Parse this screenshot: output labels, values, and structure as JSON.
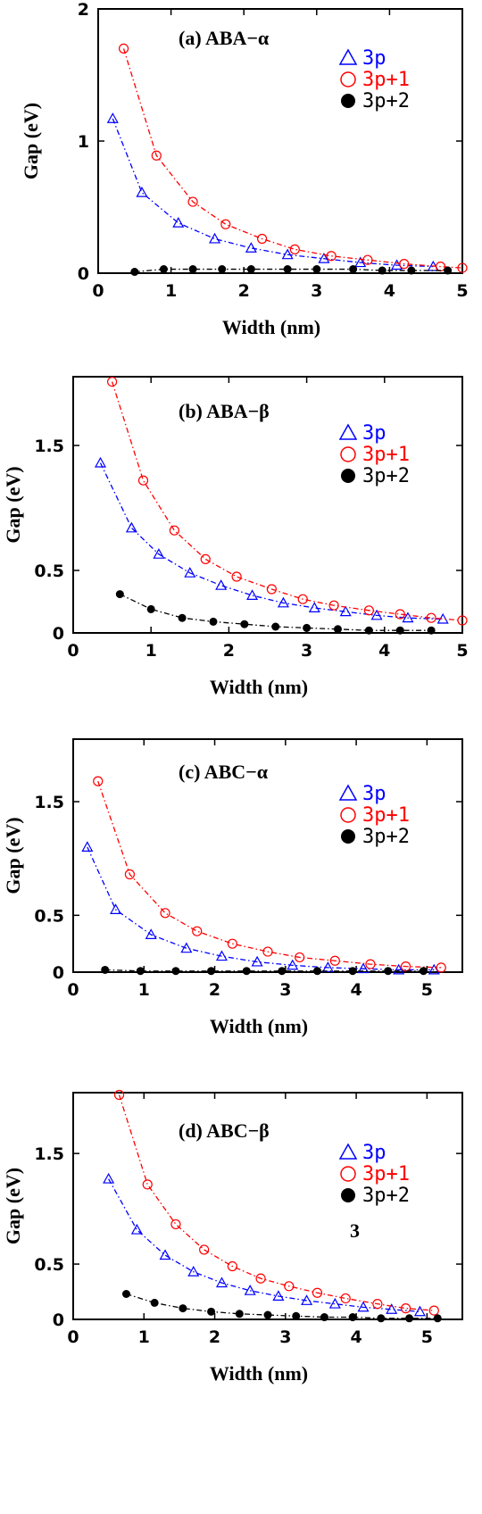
{
  "chart_data": [
    {
      "type": "line",
      "title": "(a) ABA−α",
      "xlabel": "Width (nm)",
      "ylabel": "Gap (eV)",
      "xlim": [
        0,
        5
      ],
      "ylim": [
        0,
        2
      ],
      "xticks": [
        "0",
        "1",
        "2",
        "3",
        "4",
        "5"
      ],
      "xtick_values": [
        0,
        1,
        2,
        3,
        4,
        5
      ],
      "yticks": [
        "0",
        "1",
        "2"
      ],
      "ytick_values": [
        0,
        1,
        2
      ],
      "legend_position": "top-right",
      "series": [
        {
          "name": "3p",
          "color": "#0000ff",
          "marker": "triangle",
          "x": [
            0.2,
            0.6,
            1.1,
            1.6,
            2.1,
            2.6,
            3.1,
            3.6,
            4.1,
            4.6
          ],
          "y": [
            1.17,
            0.61,
            0.38,
            0.26,
            0.19,
            0.14,
            0.11,
            0.08,
            0.06,
            0.05
          ]
        },
        {
          "name": "3p+1",
          "color": "#ff0000",
          "marker": "circle-open",
          "x": [
            0.35,
            0.8,
            1.3,
            1.75,
            2.25,
            2.7,
            3.2,
            3.7,
            4.2,
            4.7,
            5.0
          ],
          "y": [
            1.7,
            0.89,
            0.54,
            0.37,
            0.26,
            0.18,
            0.13,
            0.1,
            0.07,
            0.05,
            0.04
          ]
        },
        {
          "name": "3p+2",
          "color": "#000000",
          "marker": "circle-filled",
          "x": [
            0.5,
            0.9,
            1.3,
            1.7,
            2.1,
            2.6,
            3.0,
            3.5,
            3.9,
            4.3,
            4.8
          ],
          "y": [
            0.01,
            0.03,
            0.03,
            0.03,
            0.03,
            0.03,
            0.03,
            0.03,
            0.02,
            0.02,
            0.02
          ]
        }
      ]
    },
    {
      "type": "line",
      "title": "(b) ABA−β",
      "xlabel": "Width (nm)",
      "ylabel": "Gap (eV)",
      "xlim": [
        0,
        5
      ],
      "ylim": [
        0,
        2.05
      ],
      "xticks": [
        "0",
        "1",
        "2",
        "3",
        "4",
        "5"
      ],
      "xtick_values": [
        0,
        1,
        2,
        3,
        4,
        5
      ],
      "yticks": [
        "0",
        "0.5",
        "1.5"
      ],
      "ytick_values": [
        0,
        0.5,
        1.5
      ],
      "legend_position": "right",
      "series": [
        {
          "name": "3p",
          "color": "#0000ff",
          "marker": "triangle",
          "x": [
            0.35,
            0.75,
            1.1,
            1.5,
            1.9,
            2.3,
            2.7,
            3.1,
            3.5,
            3.9,
            4.3,
            4.75
          ],
          "y": [
            1.36,
            0.84,
            0.63,
            0.48,
            0.38,
            0.3,
            0.24,
            0.2,
            0.17,
            0.14,
            0.12,
            0.11
          ]
        },
        {
          "name": "3p+1",
          "color": "#ff0000",
          "marker": "circle-open",
          "x": [
            0.5,
            0.9,
            1.3,
            1.7,
            2.1,
            2.55,
            2.95,
            3.35,
            3.8,
            4.2,
            4.6,
            5.0
          ],
          "y": [
            2.01,
            1.22,
            0.82,
            0.59,
            0.45,
            0.35,
            0.27,
            0.22,
            0.18,
            0.15,
            0.12,
            0.1
          ]
        },
        {
          "name": "3p+2",
          "color": "#000000",
          "marker": "circle-filled",
          "x": [
            0.6,
            1.0,
            1.4,
            1.8,
            2.2,
            2.6,
            3.0,
            3.4,
            3.8,
            4.2,
            4.6
          ],
          "y": [
            0.31,
            0.19,
            0.12,
            0.09,
            0.07,
            0.05,
            0.04,
            0.03,
            0.02,
            0.02,
            0.02
          ]
        }
      ]
    },
    {
      "type": "line",
      "title": "(c) ABC−α",
      "xlabel": "Width (nm)",
      "ylabel": "Gap (eV)",
      "xlim": [
        0,
        5.5
      ],
      "ylim": [
        0,
        2.05
      ],
      "xticks": [
        "0",
        "1",
        "2",
        "3",
        "4",
        "5"
      ],
      "xtick_values": [
        0,
        1,
        2,
        3,
        4,
        5
      ],
      "yticks": [
        "0",
        "0.5",
        "1.5"
      ],
      "ytick_values": [
        0,
        0.5,
        1.5
      ],
      "legend_position": "right",
      "series": [
        {
          "name": "3p",
          "color": "#0000ff",
          "marker": "triangle",
          "x": [
            0.2,
            0.6,
            1.1,
            1.6,
            2.1,
            2.6,
            3.1,
            3.6,
            4.1,
            4.6,
            5.1
          ],
          "y": [
            1.1,
            0.55,
            0.33,
            0.21,
            0.14,
            0.09,
            0.06,
            0.04,
            0.03,
            0.02,
            0.02
          ]
        },
        {
          "name": "3p+1",
          "color": "#ff0000",
          "marker": "circle-open",
          "x": [
            0.35,
            0.8,
            1.3,
            1.75,
            2.25,
            2.75,
            3.2,
            3.7,
            4.2,
            4.7,
            5.2
          ],
          "y": [
            1.68,
            0.86,
            0.52,
            0.36,
            0.25,
            0.18,
            0.13,
            0.1,
            0.07,
            0.05,
            0.04
          ]
        },
        {
          "name": "3p+2",
          "color": "#000000",
          "marker": "circle-filled",
          "x": [
            0.45,
            0.95,
            1.45,
            1.95,
            2.45,
            2.95,
            3.45,
            3.95,
            4.45,
            4.95
          ],
          "y": [
            0.02,
            0.01,
            0.01,
            0.01,
            0.01,
            0.01,
            0.01,
            0.01,
            0.01,
            0.01
          ]
        }
      ]
    },
    {
      "type": "line",
      "title": "(d) ABC−β",
      "xlabel": "Width (nm)",
      "ylabel": "Gap (eV)",
      "xlim": [
        0,
        5.5
      ],
      "ylim": [
        0,
        2.05
      ],
      "xticks": [
        "0",
        "1",
        "2",
        "3",
        "4",
        "5"
      ],
      "xtick_values": [
        0,
        1,
        2,
        3,
        4,
        5
      ],
      "yticks": [
        "0",
        "0.5",
        "1.5"
      ],
      "ytick_values": [
        0,
        0.5,
        1.5
      ],
      "legend_position": "right",
      "annotation": "3",
      "series": [
        {
          "name": "3p",
          "color": "#0000ff",
          "marker": "triangle",
          "x": [
            0.5,
            0.9,
            1.3,
            1.7,
            2.1,
            2.5,
            2.9,
            3.3,
            3.7,
            4.1,
            4.5,
            4.9
          ],
          "y": [
            1.27,
            0.81,
            0.58,
            0.43,
            0.33,
            0.26,
            0.21,
            0.17,
            0.14,
            0.11,
            0.09,
            0.07
          ]
        },
        {
          "name": "3p+1",
          "color": "#ff0000",
          "marker": "circle-open",
          "x": [
            0.65,
            1.05,
            1.45,
            1.85,
            2.25,
            2.65,
            3.05,
            3.45,
            3.85,
            4.3,
            4.7,
            5.1
          ],
          "y": [
            2.03,
            1.22,
            0.86,
            0.63,
            0.48,
            0.37,
            0.3,
            0.24,
            0.19,
            0.14,
            0.1,
            0.08
          ]
        },
        {
          "name": "3p+2",
          "color": "#000000",
          "marker": "circle-filled",
          "x": [
            0.75,
            1.15,
            1.55,
            1.95,
            2.35,
            2.75,
            3.15,
            3.55,
            3.95,
            4.35,
            4.75,
            5.15
          ],
          "y": [
            0.23,
            0.15,
            0.1,
            0.07,
            0.05,
            0.04,
            0.03,
            0.02,
            0.02,
            0.01,
            0.01,
            0.01
          ]
        }
      ]
    }
  ]
}
